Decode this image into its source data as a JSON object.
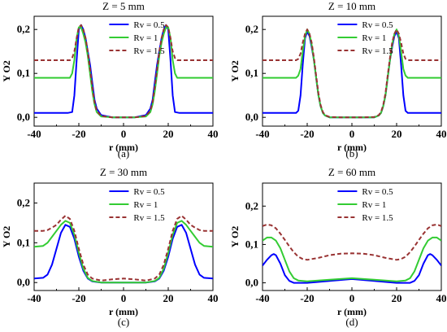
{
  "chart_data": [
    {
      "type": "line",
      "title": "Z = 5 mm",
      "caption": "(a)",
      "xlabel": "r (mm)",
      "ylabel": "Y O2",
      "xlim": [
        -40,
        40
      ],
      "ylim": [
        -0.02,
        0.23
      ],
      "xticks": [
        -40,
        -20,
        0,
        20,
        40
      ],
      "yticks": [
        0.0,
        0.1,
        0.2
      ],
      "yticklabels": [
        "0,0",
        "0,1",
        "0,2"
      ],
      "legend_position": "top-right",
      "series": [
        {
          "name": "Rv = 0.5",
          "color": "#0000ff",
          "dash": "solid",
          "x": [
            -40,
            -30,
            -25,
            -23,
            -22,
            -21,
            -20,
            -19,
            -18,
            -17,
            -16,
            -15,
            -14,
            -13,
            -12,
            -10,
            -5,
            0,
            5,
            10,
            12,
            13,
            14,
            15,
            16,
            17,
            18,
            19,
            20,
            21,
            22,
            23,
            25,
            30,
            40
          ],
          "y": [
            0.01,
            0.01,
            0.01,
            0.012,
            0.05,
            0.13,
            0.2,
            0.21,
            0.2,
            0.18,
            0.15,
            0.12,
            0.08,
            0.04,
            0.02,
            0.005,
            0.0,
            0.0,
            0.0,
            0.005,
            0.02,
            0.04,
            0.08,
            0.12,
            0.15,
            0.18,
            0.2,
            0.21,
            0.2,
            0.13,
            0.05,
            0.012,
            0.01,
            0.01,
            0.01
          ]
        },
        {
          "name": "Rv = 1",
          "color": "#33cc33",
          "dash": "solid",
          "x": [
            -40,
            -30,
            -24,
            -23,
            -22,
            -21,
            -20,
            -19,
            -18,
            -17,
            -16,
            -15,
            -14,
            -13,
            -12,
            -10,
            -5,
            0,
            5,
            10,
            12,
            13,
            14,
            15,
            16,
            17,
            18,
            19,
            20,
            21,
            22,
            23,
            24,
            30,
            40
          ],
          "y": [
            0.09,
            0.09,
            0.09,
            0.1,
            0.13,
            0.18,
            0.205,
            0.205,
            0.19,
            0.17,
            0.14,
            0.1,
            0.06,
            0.03,
            0.012,
            0.002,
            0.0,
            0.0,
            0.0,
            0.002,
            0.012,
            0.03,
            0.06,
            0.1,
            0.14,
            0.17,
            0.19,
            0.205,
            0.205,
            0.18,
            0.13,
            0.1,
            0.09,
            0.09,
            0.09
          ]
        },
        {
          "name": "Rv = 1.5",
          "color": "#993333",
          "dash": "dashed",
          "x": [
            -40,
            -30,
            -24,
            -23,
            -22,
            -21,
            -20,
            -19,
            -18,
            -17,
            -16,
            -15,
            -14,
            -13,
            -12,
            -10,
            -5,
            0,
            5,
            10,
            12,
            13,
            14,
            15,
            16,
            17,
            18,
            19,
            20,
            21,
            22,
            23,
            24,
            30,
            40
          ],
          "y": [
            0.13,
            0.13,
            0.13,
            0.135,
            0.15,
            0.18,
            0.205,
            0.21,
            0.2,
            0.18,
            0.15,
            0.11,
            0.07,
            0.035,
            0.015,
            0.003,
            0.0,
            0.0,
            0.0,
            0.003,
            0.015,
            0.035,
            0.07,
            0.11,
            0.15,
            0.18,
            0.2,
            0.21,
            0.205,
            0.18,
            0.15,
            0.135,
            0.13,
            0.13,
            0.13
          ]
        }
      ]
    },
    {
      "type": "line",
      "title": "Z = 10 mm",
      "caption": "(b)",
      "xlabel": "r (mm)",
      "ylabel": "Y O2",
      "xlim": [
        -40,
        40
      ],
      "ylim": [
        -0.02,
        0.23
      ],
      "xticks": [
        -40,
        -20,
        0,
        20,
        40
      ],
      "yticks": [
        0.0,
        0.1,
        0.2
      ],
      "yticklabels": [
        "0,0",
        "0,1",
        "0,2"
      ],
      "legend_position": "top-right",
      "series": [
        {
          "name": "Rv = 0.5",
          "color": "#0000ff",
          "dash": "solid",
          "x": [
            -40,
            -30,
            -25,
            -24,
            -23,
            -22,
            -21,
            -20,
            -19,
            -18,
            -17,
            -16,
            -15,
            -14,
            -13,
            -12,
            -10,
            -5,
            0,
            5,
            10,
            12,
            13,
            14,
            15,
            16,
            17,
            18,
            19,
            20,
            21,
            22,
            23,
            24,
            25,
            30,
            40
          ],
          "y": [
            0.01,
            0.01,
            0.01,
            0.015,
            0.05,
            0.12,
            0.18,
            0.195,
            0.185,
            0.16,
            0.13,
            0.09,
            0.05,
            0.025,
            0.01,
            0.004,
            0.0,
            0.0,
            0.0,
            0.0,
            0.0,
            0.004,
            0.01,
            0.025,
            0.05,
            0.09,
            0.13,
            0.16,
            0.185,
            0.195,
            0.18,
            0.12,
            0.05,
            0.015,
            0.01,
            0.01,
            0.01
          ]
        },
        {
          "name": "Rv = 1",
          "color": "#33cc33",
          "dash": "solid",
          "x": [
            -40,
            -30,
            -25,
            -24,
            -23,
            -22,
            -21,
            -20,
            -19,
            -18,
            -17,
            -16,
            -15,
            -14,
            -13,
            -12,
            -10,
            -5,
            0,
            5,
            10,
            12,
            13,
            14,
            15,
            16,
            17,
            18,
            19,
            20,
            21,
            22,
            23,
            24,
            25,
            30,
            40
          ],
          "y": [
            0.09,
            0.09,
            0.09,
            0.095,
            0.11,
            0.15,
            0.185,
            0.2,
            0.19,
            0.165,
            0.13,
            0.09,
            0.05,
            0.025,
            0.01,
            0.004,
            0.0,
            0.0,
            0.0,
            0.0,
            0.0,
            0.004,
            0.01,
            0.025,
            0.05,
            0.09,
            0.13,
            0.165,
            0.19,
            0.2,
            0.185,
            0.15,
            0.11,
            0.095,
            0.09,
            0.09,
            0.09
          ]
        },
        {
          "name": "Rv = 1.5",
          "color": "#993333",
          "dash": "dashed",
          "x": [
            -40,
            -30,
            -25,
            -24,
            -23,
            -22,
            -21,
            -20,
            -19,
            -18,
            -17,
            -16,
            -15,
            -14,
            -13,
            -12,
            -10,
            -5,
            0,
            5,
            10,
            12,
            13,
            14,
            15,
            16,
            17,
            18,
            19,
            20,
            21,
            22,
            23,
            24,
            25,
            30,
            40
          ],
          "y": [
            0.13,
            0.13,
            0.13,
            0.133,
            0.145,
            0.17,
            0.19,
            0.2,
            0.19,
            0.17,
            0.135,
            0.095,
            0.055,
            0.028,
            0.012,
            0.005,
            0.001,
            0.0,
            0.0,
            0.0,
            0.001,
            0.005,
            0.012,
            0.028,
            0.055,
            0.095,
            0.135,
            0.17,
            0.19,
            0.2,
            0.19,
            0.17,
            0.145,
            0.133,
            0.13,
            0.13,
            0.13
          ]
        }
      ]
    },
    {
      "type": "line",
      "title": "Z = 30 mm",
      "caption": "(c)",
      "xlabel": "r (mm)",
      "ylabel": "Y O2",
      "xlim": [
        -40,
        40
      ],
      "ylim": [
        -0.02,
        0.25
      ],
      "xticks": [
        -40,
        -20,
        0,
        20,
        40
      ],
      "yticks": [
        0.0,
        0.1,
        0.2
      ],
      "yticklabels": [
        "0,0",
        "0,1",
        "0,2"
      ],
      "legend_position": "top-right",
      "series": [
        {
          "name": "Rv = 0.5",
          "color": "#0000ff",
          "dash": "solid",
          "x": [
            -40,
            -36,
            -34,
            -32,
            -30,
            -28,
            -26,
            -24,
            -22,
            -20,
            -18,
            -16,
            -14,
            -10,
            0,
            10,
            14,
            16,
            18,
            20,
            22,
            24,
            26,
            28,
            30,
            32,
            34,
            36,
            40
          ],
          "y": [
            0.01,
            0.012,
            0.02,
            0.045,
            0.085,
            0.125,
            0.145,
            0.14,
            0.11,
            0.065,
            0.03,
            0.01,
            0.003,
            0.0,
            0.0,
            0.0,
            0.003,
            0.01,
            0.03,
            0.065,
            0.11,
            0.14,
            0.145,
            0.125,
            0.085,
            0.045,
            0.02,
            0.012,
            0.01
          ]
        },
        {
          "name": "Rv = 1",
          "color": "#33cc33",
          "dash": "solid",
          "x": [
            -40,
            -36,
            -34,
            -32,
            -30,
            -28,
            -26,
            -24,
            -22,
            -20,
            -18,
            -16,
            -14,
            -10,
            0,
            10,
            14,
            16,
            18,
            20,
            22,
            24,
            26,
            28,
            30,
            32,
            34,
            36,
            40
          ],
          "y": [
            0.09,
            0.092,
            0.1,
            0.115,
            0.13,
            0.145,
            0.155,
            0.15,
            0.12,
            0.075,
            0.035,
            0.012,
            0.004,
            0.0,
            0.0,
            0.0,
            0.004,
            0.012,
            0.035,
            0.075,
            0.12,
            0.15,
            0.155,
            0.145,
            0.13,
            0.115,
            0.1,
            0.092,
            0.09
          ]
        },
        {
          "name": "Rv = 1.5",
          "color": "#993333",
          "dash": "dashed",
          "x": [
            -40,
            -36,
            -34,
            -32,
            -30,
            -28,
            -26,
            -24,
            -22,
            -20,
            -18,
            -16,
            -14,
            -10,
            -5,
            0,
            5,
            10,
            14,
            16,
            18,
            20,
            22,
            24,
            26,
            28,
            30,
            32,
            34,
            36,
            40
          ],
          "y": [
            0.13,
            0.13,
            0.132,
            0.138,
            0.145,
            0.158,
            0.168,
            0.16,
            0.13,
            0.085,
            0.045,
            0.02,
            0.01,
            0.005,
            0.008,
            0.01,
            0.008,
            0.005,
            0.01,
            0.02,
            0.045,
            0.085,
            0.13,
            0.16,
            0.168,
            0.158,
            0.145,
            0.138,
            0.132,
            0.13,
            0.13
          ]
        }
      ]
    },
    {
      "type": "line",
      "title": "Z = 60 mm",
      "caption": "(d)",
      "xlabel": "r (mm)",
      "ylabel": "Y O2",
      "xlim": [
        -40,
        40
      ],
      "ylim": [
        -0.02,
        0.26
      ],
      "xticks": [
        -40,
        -20,
        0,
        20,
        40
      ],
      "yticks": [
        0.0,
        0.1,
        0.2
      ],
      "yticklabels": [
        "0,0",
        "0,1",
        "0,2"
      ],
      "legend_position": "top-right",
      "series": [
        {
          "name": "Rv = 0.5",
          "color": "#0000ff",
          "dash": "solid",
          "x": [
            -40,
            -38,
            -36,
            -35,
            -34,
            -32,
            -30,
            -28,
            -26,
            -24,
            -20,
            -10,
            0,
            10,
            20,
            24,
            26,
            28,
            30,
            32,
            34,
            35,
            36,
            38,
            40
          ],
          "y": [
            0.045,
            0.06,
            0.072,
            0.075,
            0.072,
            0.05,
            0.02,
            0.005,
            0.0,
            0.0,
            0.0,
            0.005,
            0.01,
            0.005,
            0.0,
            0.0,
            0.0,
            0.005,
            0.02,
            0.05,
            0.072,
            0.075,
            0.072,
            0.06,
            0.045
          ]
        },
        {
          "name": "Rv = 1",
          "color": "#33cc33",
          "dash": "solid",
          "x": [
            -40,
            -38,
            -36,
            -34,
            -32,
            -30,
            -28,
            -26,
            -24,
            -20,
            -10,
            0,
            10,
            20,
            24,
            26,
            28,
            30,
            32,
            34,
            36,
            38,
            40
          ],
          "y": [
            0.11,
            0.118,
            0.118,
            0.11,
            0.09,
            0.06,
            0.03,
            0.012,
            0.006,
            0.004,
            0.008,
            0.012,
            0.008,
            0.004,
            0.006,
            0.012,
            0.03,
            0.06,
            0.09,
            0.11,
            0.118,
            0.118,
            0.11
          ]
        },
        {
          "name": "Rv = 1.5",
          "color": "#993333",
          "dash": "dashed",
          "x": [
            -40,
            -38,
            -36,
            -34,
            -32,
            -30,
            -28,
            -26,
            -24,
            -22,
            -20,
            -15,
            -10,
            -5,
            0,
            5,
            10,
            15,
            20,
            22,
            24,
            26,
            28,
            30,
            32,
            34,
            36,
            38,
            40
          ],
          "y": [
            0.148,
            0.152,
            0.15,
            0.142,
            0.128,
            0.112,
            0.095,
            0.08,
            0.068,
            0.062,
            0.06,
            0.065,
            0.072,
            0.076,
            0.077,
            0.076,
            0.072,
            0.065,
            0.06,
            0.062,
            0.068,
            0.08,
            0.095,
            0.112,
            0.128,
            0.142,
            0.15,
            0.152,
            0.148
          ]
        }
      ]
    }
  ]
}
